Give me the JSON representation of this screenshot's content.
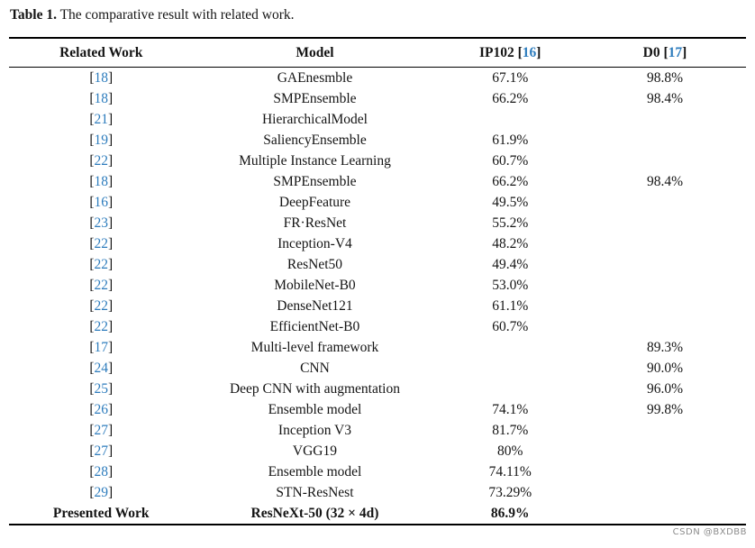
{
  "caption": {
    "label": "Table 1.",
    "text": " The comparative result with related work."
  },
  "watermark": "CSDN @BXDBB",
  "colors": {
    "link_blue": "#2d7cbd",
    "text_black": "#141414",
    "rule_black": "#000000",
    "watermark_gray": "#8c8c8c"
  },
  "table": {
    "columns": [
      {
        "label": "Related Work",
        "ref": ""
      },
      {
        "label": "Model",
        "ref": ""
      },
      {
        "label": "IP102",
        "ref": "16"
      },
      {
        "label": "D0",
        "ref": "17"
      }
    ],
    "rows": [
      {
        "ref": "18",
        "work_label": "",
        "model": "GAEnesmble",
        "ip102": "67.1%",
        "d0": "98.8%",
        "bold": false
      },
      {
        "ref": "18",
        "work_label": "",
        "model": "SMPEnsemble",
        "ip102": "66.2%",
        "d0": "98.4%",
        "bold": false
      },
      {
        "ref": "21",
        "work_label": "",
        "model": "HierarchicalModel",
        "ip102": "",
        "d0": "",
        "bold": false
      },
      {
        "ref": "19",
        "work_label": "",
        "model": "SaliencyEnsemble",
        "ip102": "61.9%",
        "d0": "",
        "bold": false
      },
      {
        "ref": "22",
        "work_label": "",
        "model": "Multiple Instance Learning",
        "ip102": "60.7%",
        "d0": "",
        "bold": false
      },
      {
        "ref": "18",
        "work_label": "",
        "model": "SMPEnsemble",
        "ip102": "66.2%",
        "d0": "98.4%",
        "bold": false
      },
      {
        "ref": "16",
        "work_label": "",
        "model": "DeepFeature",
        "ip102": "49.5%",
        "d0": "",
        "bold": false
      },
      {
        "ref": "23",
        "work_label": "",
        "model": "FR·ResNet",
        "ip102": "55.2%",
        "d0": "",
        "bold": false
      },
      {
        "ref": "22",
        "work_label": "",
        "model": "Inception-V4",
        "ip102": "48.2%",
        "d0": "",
        "bold": false
      },
      {
        "ref": "22",
        "work_label": "",
        "model": "ResNet50",
        "ip102": "49.4%",
        "d0": "",
        "bold": false
      },
      {
        "ref": "22",
        "work_label": "",
        "model": "MobileNet-B0",
        "ip102": "53.0%",
        "d0": "",
        "bold": false
      },
      {
        "ref": "22",
        "work_label": "",
        "model": "DenseNet121",
        "ip102": "61.1%",
        "d0": "",
        "bold": false
      },
      {
        "ref": "22",
        "work_label": "",
        "model": "EfficientNet-B0",
        "ip102": "60.7%",
        "d0": "",
        "bold": false
      },
      {
        "ref": "17",
        "work_label": "",
        "model": "Multi-level framework",
        "ip102": "",
        "d0": "89.3%",
        "bold": false
      },
      {
        "ref": "24",
        "work_label": "",
        "model": "CNN",
        "ip102": "",
        "d0": "90.0%",
        "bold": false
      },
      {
        "ref": "25",
        "work_label": "",
        "model": "Deep CNN with augmentation",
        "ip102": "",
        "d0": "96.0%",
        "bold": false
      },
      {
        "ref": "26",
        "work_label": "",
        "model": "Ensemble model",
        "ip102": "74.1%",
        "d0": "99.8%",
        "bold": false
      },
      {
        "ref": "27",
        "work_label": "",
        "model": "Inception V3",
        "ip102": "81.7%",
        "d0": "",
        "bold": false
      },
      {
        "ref": "27",
        "work_label": "",
        "model": "VGG19",
        "ip102": "80%",
        "d0": "",
        "bold": false
      },
      {
        "ref": "28",
        "work_label": "",
        "model": "Ensemble model",
        "ip102": "74.11%",
        "d0": "",
        "bold": false
      },
      {
        "ref": "29",
        "work_label": "",
        "model": "STN-ResNest",
        "ip102": "73.29%",
        "d0": "",
        "bold": false
      },
      {
        "ref": "",
        "work_label": "Presented Work",
        "model": "ResNeXt-50 (32 × 4d)",
        "ip102": "86.9%",
        "d0": "",
        "bold": true
      }
    ]
  }
}
